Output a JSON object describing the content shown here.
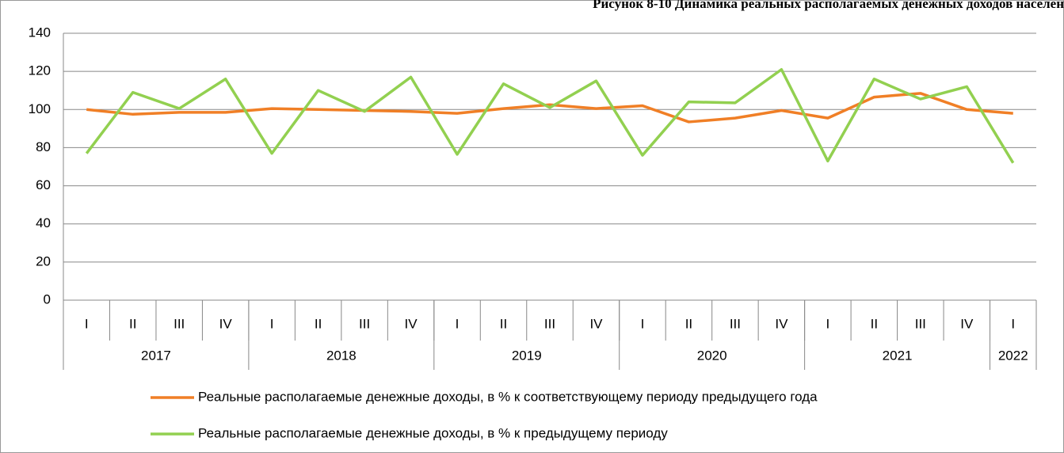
{
  "chart_data": {
    "type": "line",
    "title": "Рисунок 8-10 Динамика реальных располагаемых денежных доходов населен",
    "categories": [
      "I",
      "II",
      "III",
      "IV",
      "I",
      "II",
      "III",
      "IV",
      "I",
      "II",
      "III",
      "IV",
      "I",
      "II",
      "III",
      "IV",
      "I",
      "II",
      "III",
      "IV",
      "I"
    ],
    "groups": [
      {
        "label": "2017",
        "size": 4
      },
      {
        "label": "2018",
        "size": 4
      },
      {
        "label": "2019",
        "size": 4
      },
      {
        "label": "2020",
        "size": 4
      },
      {
        "label": "2021",
        "size": 4
      },
      {
        "label": "2022",
        "size": 1
      }
    ],
    "series": [
      {
        "name": "Реальные располагаемые денежные доходы, в % к соответствующему периоду предыдущего года",
        "color": "#f07f26",
        "values": [
          100,
          97.5,
          98.5,
          98.5,
          100.5,
          100,
          99.5,
          99,
          98,
          100.5,
          102.5,
          100.5,
          102,
          93.5,
          95.5,
          99.5,
          95.5,
          106.5,
          108.5,
          100,
          98
        ]
      },
      {
        "name": "Реальные располагаемые денежные доходы, в % к предыдущему периоду",
        "color": "#92d050",
        "values": [
          77,
          109,
          100.5,
          116,
          77,
          110,
          99,
          117,
          76.5,
          113.5,
          101,
          115,
          76,
          104,
          103.5,
          121,
          73,
          116,
          105.5,
          112,
          72
        ]
      }
    ],
    "ylim": [
      0,
      140
    ],
    "yticks": [
      0,
      20,
      40,
      60,
      80,
      100,
      120,
      140
    ],
    "grid": true
  }
}
